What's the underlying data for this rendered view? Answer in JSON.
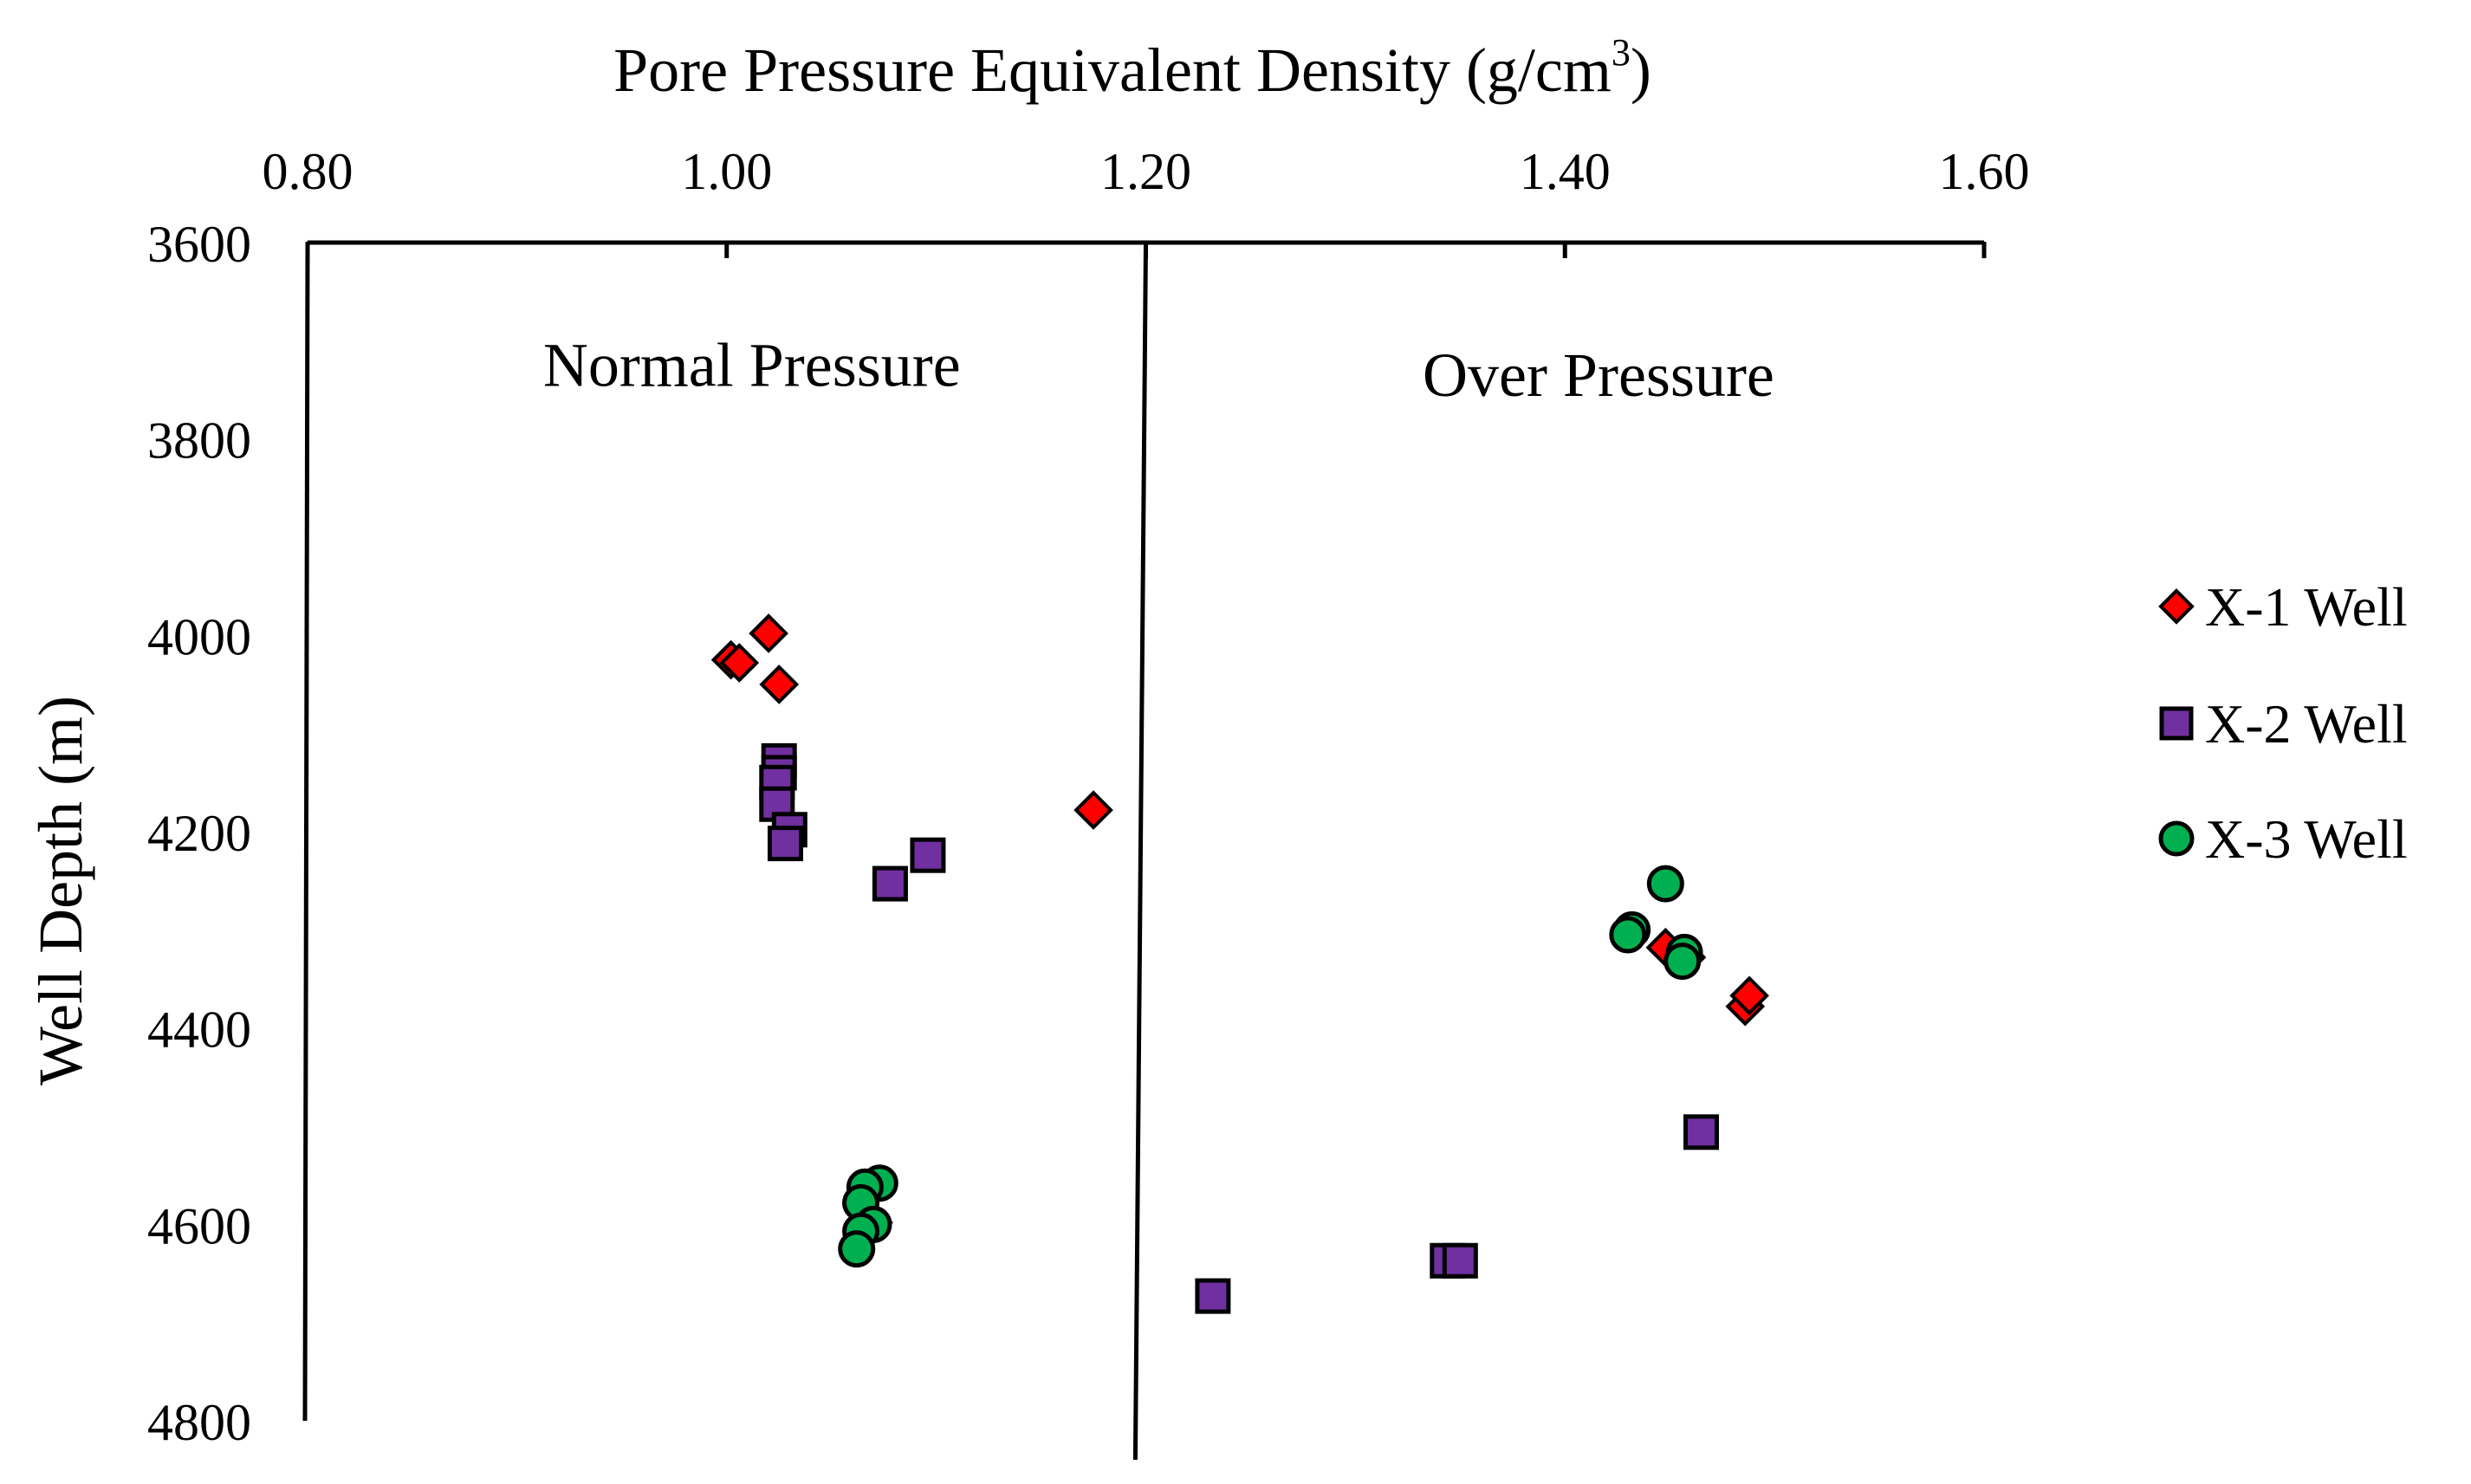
{
  "colors": {
    "background": "#ffffff",
    "axis": "#000000",
    "x1_fill": "#ff0000",
    "x2_fill": "#7030a0",
    "x3_fill": "#00b050",
    "marker_stroke": "#000000"
  },
  "chart_data": {
    "type": "scatter",
    "title": "",
    "xlabel_main": "Pore Pressure Equivalent Density  (g/cm",
    "xlabel_sup": "3",
    "xlabel_close": ")",
    "ylabel": "Well Depth (m)",
    "xlim": [
      0.8,
      1.6
    ],
    "ylim": [
      3600,
      4800
    ],
    "y_inverted": true,
    "x_axis_position": "top",
    "x_ticks": [
      "0.80",
      "1.00",
      "1.20",
      "1.40",
      "1.60"
    ],
    "x_tick_values": [
      0.8,
      1.0,
      1.2,
      1.4,
      1.6
    ],
    "y_ticks": [
      "3600",
      "3800",
      "4000",
      "4200",
      "4400",
      "4600",
      "4800"
    ],
    "y_tick_values": [
      3600,
      3800,
      4000,
      4200,
      4400,
      4600,
      4800
    ],
    "grid": false,
    "legend_position": "right",
    "divider": {
      "x_top": 1.2,
      "x_bottom": 1.195
    },
    "annotations": [
      {
        "text": "Normal Pressure",
        "x": 1.012,
        "y": 3725
      },
      {
        "text": "Over Pressure",
        "x": 1.416,
        "y": 3735
      }
    ],
    "series": [
      {
        "name": "X-1 Well",
        "marker": "diamond",
        "color": "#ff0000",
        "points": [
          {
            "x": 1.002,
            "y": 4025
          },
          {
            "x": 1.006,
            "y": 4028
          },
          {
            "x": 1.02,
            "y": 3998
          },
          {
            "x": 1.025,
            "y": 4050
          },
          {
            "x": 1.175,
            "y": 4178
          },
          {
            "x": 1.448,
            "y": 4318
          },
          {
            "x": 1.458,
            "y": 4328
          },
          {
            "x": 1.486,
            "y": 4378
          },
          {
            "x": 1.488,
            "y": 4367
          },
          {
            "x": 1.07,
            "y": 4598
          }
        ]
      },
      {
        "name": "X-2 Well",
        "marker": "square",
        "color": "#7030a0",
        "points": [
          {
            "x": 1.025,
            "y": 4128
          },
          {
            "x": 1.025,
            "y": 4140
          },
          {
            "x": 1.024,
            "y": 4150
          },
          {
            "x": 1.024,
            "y": 4172
          },
          {
            "x": 1.03,
            "y": 4198
          },
          {
            "x": 1.028,
            "y": 4212
          },
          {
            "x": 1.096,
            "y": 4224
          },
          {
            "x": 1.078,
            "y": 4253
          },
          {
            "x": 1.465,
            "y": 4506
          },
          {
            "x": 1.344,
            "y": 4637
          },
          {
            "x": 1.35,
            "y": 4637
          },
          {
            "x": 1.232,
            "y": 4673
          }
        ]
      },
      {
        "name": "X-3 Well",
        "marker": "circle",
        "color": "#00b050",
        "points": [
          {
            "x": 1.448,
            "y": 4253
          },
          {
            "x": 1.432,
            "y": 4300
          },
          {
            "x": 1.43,
            "y": 4305
          },
          {
            "x": 1.457,
            "y": 4323
          },
          {
            "x": 1.456,
            "y": 4332
          },
          {
            "x": 1.073,
            "y": 4558
          },
          {
            "x": 1.066,
            "y": 4562
          },
          {
            "x": 1.064,
            "y": 4578
          },
          {
            "x": 1.07,
            "y": 4600
          },
          {
            "x": 1.064,
            "y": 4607
          },
          {
            "x": 1.062,
            "y": 4625
          }
        ]
      }
    ]
  }
}
